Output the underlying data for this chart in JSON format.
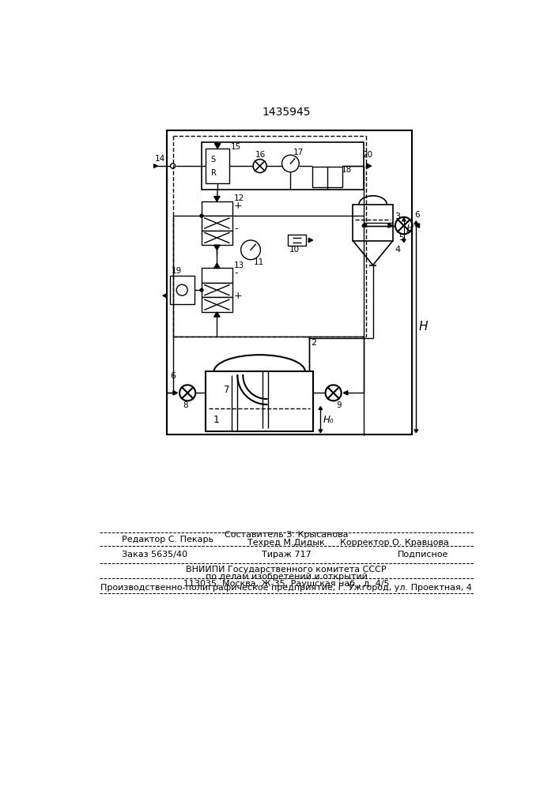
{
  "title": "1435945",
  "bg_color": "#ffffff",
  "line_color": "#000000",
  "footer": {
    "line1_left": "Редактор С. Пекарь",
    "line1_center": "Составитель З. Крысанова",
    "line2_center": "Техред М.Дидык",
    "line2_right": "Корректор О. Кравцова",
    "line3_left": "Заказ 5635/40",
    "line3_center": "Тираж 717",
    "line3_right": "Подписное",
    "line4": "ВНИИПИ Государственного комитета СССР",
    "line5": "по делам изобретений и открытий",
    "line6": "113035, Москва, Ж-35, Раушская наб., д. 4/5",
    "line7": "Производственно-полиграфическое предприятие, г. Ужгород, ул. Проектная, 4"
  }
}
